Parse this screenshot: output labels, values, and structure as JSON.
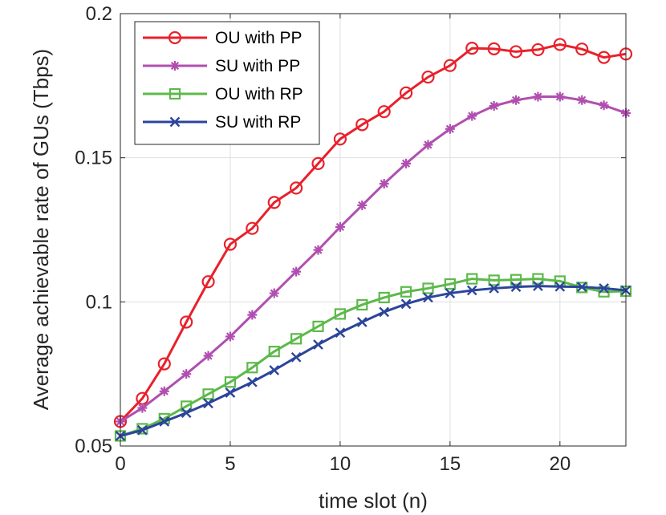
{
  "chart_data": {
    "type": "line",
    "xlabel": "time slot (n)",
    "ylabel": "Average achievable rate of GUs (Tbps)",
    "xlim": [
      0,
      23
    ],
    "ylim": [
      0.05,
      0.2
    ],
    "xticks": [
      0,
      5,
      10,
      15,
      20
    ],
    "yticks": [
      0.05,
      0.1,
      0.15,
      0.2
    ],
    "xtick_labels": [
      "0",
      "5",
      "10",
      "15",
      "20"
    ],
    "ytick_labels": [
      "0.05",
      "0.1",
      "0.15",
      "0.2"
    ],
    "grid": true,
    "legend_position": "top-left",
    "x": [
      0,
      1,
      2,
      3,
      4,
      5,
      6,
      7,
      8,
      9,
      10,
      11,
      12,
      13,
      14,
      15,
      16,
      17,
      18,
      19,
      20,
      21,
      22,
      23
    ],
    "series": [
      {
        "name": "OU with PP",
        "color": "#e8212b",
        "marker": "circle",
        "values": [
          0.0585,
          0.0665,
          0.0785,
          0.093,
          0.107,
          0.12,
          0.1255,
          0.1345,
          0.1395,
          0.148,
          0.1565,
          0.1615,
          0.166,
          0.1725,
          0.178,
          0.182,
          0.188,
          0.1878,
          0.1868,
          0.1875,
          0.1893,
          0.1877,
          0.1848,
          0.186
        ]
      },
      {
        "name": "SU with PP",
        "color": "#b04fb0",
        "marker": "asterisk",
        "values": [
          0.0585,
          0.0632,
          0.069,
          0.075,
          0.0813,
          0.088,
          0.0955,
          0.103,
          0.1105,
          0.118,
          0.126,
          0.1335,
          0.141,
          0.148,
          0.1545,
          0.16,
          0.1645,
          0.168,
          0.17,
          0.1712,
          0.1712,
          0.17,
          0.1682,
          0.1655
        ]
      },
      {
        "name": "OU with RP",
        "color": "#5cb94a",
        "marker": "square",
        "values": [
          0.0535,
          0.056,
          0.0595,
          0.0638,
          0.068,
          0.0722,
          0.0772,
          0.0828,
          0.0872,
          0.0915,
          0.0958,
          0.099,
          0.1015,
          0.1035,
          0.1047,
          0.1062,
          0.108,
          0.1075,
          0.1077,
          0.108,
          0.1072,
          0.105,
          0.1035,
          0.1037
        ]
      },
      {
        "name": "SU with RP",
        "color": "#2c459b",
        "marker": "x",
        "values": [
          0.0535,
          0.0555,
          0.0585,
          0.0615,
          0.0648,
          0.0685,
          0.0722,
          0.0763,
          0.0808,
          0.0852,
          0.0893,
          0.093,
          0.0965,
          0.0993,
          0.1015,
          0.103,
          0.104,
          0.1047,
          0.1052,
          0.1055,
          0.1053,
          0.1052,
          0.1047,
          0.104
        ]
      }
    ]
  }
}
